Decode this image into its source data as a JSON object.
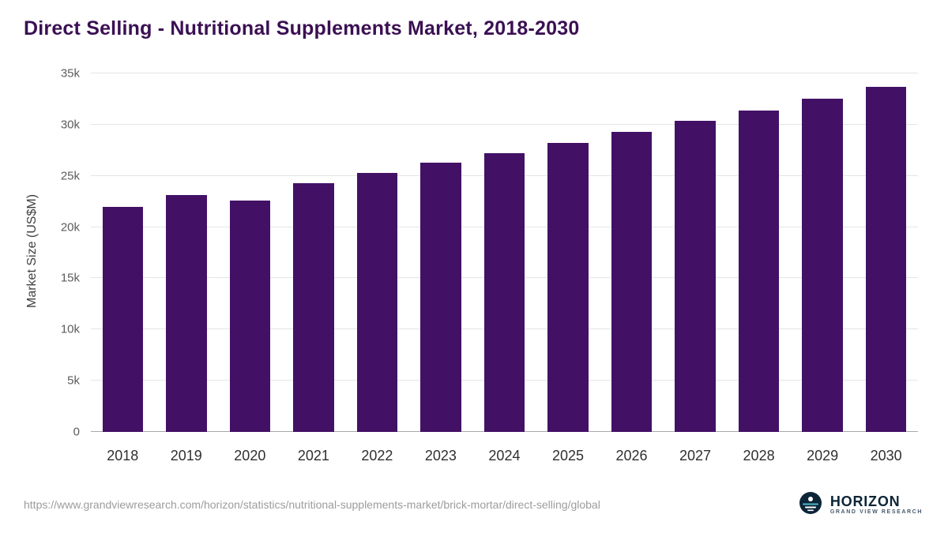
{
  "header": {
    "title": "Direct Selling - Nutritional Supplements Market, 2018-2030"
  },
  "chart_data": {
    "type": "bar",
    "title": "Direct Selling - Nutritional Supplements Market, 2018-2030",
    "categories": [
      "2018",
      "2019",
      "2020",
      "2021",
      "2022",
      "2023",
      "2024",
      "2025",
      "2026",
      "2027",
      "2028",
      "2029",
      "2030"
    ],
    "values": [
      22000,
      23100,
      22600,
      24300,
      25300,
      26300,
      27200,
      28200,
      29300,
      30350,
      31400,
      32500,
      33700
    ],
    "xlabel": "",
    "ylabel": "Market Size (US$M)",
    "ylim": [
      0,
      35000
    ],
    "yticks": [
      {
        "value": 0,
        "label": "0"
      },
      {
        "value": 5000,
        "label": "5k"
      },
      {
        "value": 10000,
        "label": "10k"
      },
      {
        "value": 15000,
        "label": "15k"
      },
      {
        "value": 20000,
        "label": "20k"
      },
      {
        "value": 25000,
        "label": "25k"
      },
      {
        "value": 30000,
        "label": "30k"
      },
      {
        "value": 35000,
        "label": "35k"
      }
    ],
    "grid": true,
    "legend": false
  },
  "footer": {
    "source_url": "https://www.grandviewresearch.com/horizon/statistics/nutritional-supplements-market/brick-mortar/direct-selling/global",
    "logo": {
      "name": "HORIZON",
      "subtitle": "GRAND VIEW RESEARCH"
    }
  },
  "colors": {
    "bar": "#421165",
    "title": "#3b1053",
    "grid": "#e4e4e4",
    "axis": "#a8a8a8",
    "logo_circle": "#0d2538"
  }
}
